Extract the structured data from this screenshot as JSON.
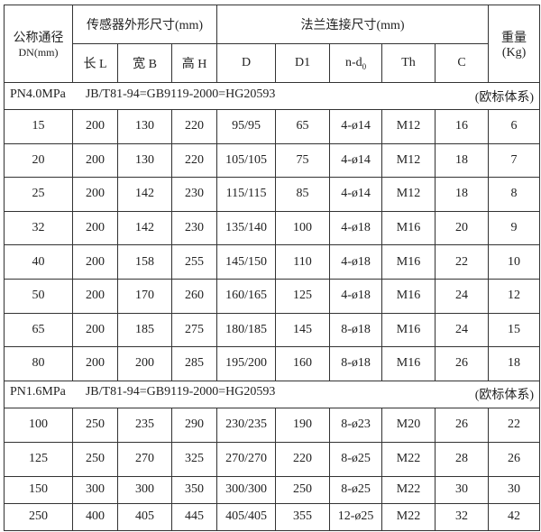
{
  "header": {
    "dn": "公称通径",
    "dn_unit": "DN(mm)",
    "sensor": "传感器外形尺寸(mm)",
    "flange": "法兰连接尺寸(mm)",
    "weight": "重量",
    "weight_unit": "(Kg)",
    "cols": [
      "长 L",
      "宽 B",
      "高 H",
      "D",
      "D1",
      "n-d",
      "Th",
      "C"
    ],
    "nd_sub": "0"
  },
  "sections": [
    {
      "pressure": "PN4.0MPa",
      "standard": "JB/T81-94=GB9119-2000=HG20593",
      "system": "(欧标体系)",
      "rows": [
        [
          "15",
          "200",
          "130",
          "220",
          "95/95",
          "65",
          "4-ø14",
          "M12",
          "16",
          "6"
        ],
        [
          "20",
          "200",
          "130",
          "220",
          "105/105",
          "75",
          "4-ø14",
          "M12",
          "18",
          "7"
        ],
        [
          "25",
          "200",
          "142",
          "230",
          "115/115",
          "85",
          "4-ø14",
          "M12",
          "18",
          "8"
        ],
        [
          "32",
          "200",
          "142",
          "230",
          "135/140",
          "100",
          "4-ø18",
          "M16",
          "20",
          "9"
        ],
        [
          "40",
          "200",
          "158",
          "255",
          "145/150",
          "110",
          "4-ø18",
          "M16",
          "22",
          "10"
        ],
        [
          "50",
          "200",
          "170",
          "260",
          "160/165",
          "125",
          "4-ø18",
          "M16",
          "24",
          "12"
        ],
        [
          "65",
          "200",
          "185",
          "275",
          "180/185",
          "145",
          "8-ø18",
          "M16",
          "24",
          "15"
        ],
        [
          "80",
          "200",
          "200",
          "285",
          "195/200",
          "160",
          "8-ø18",
          "M16",
          "26",
          "18"
        ]
      ]
    },
    {
      "pressure": "PN1.6MPa",
      "standard": "JB/T81-94=GB9119-2000=HG20593",
      "system": "(欧标体系)",
      "rows": [
        [
          "100",
          "250",
          "235",
          "290",
          "230/235",
          "190",
          "8-ø23",
          "M20",
          "26",
          "22"
        ],
        [
          "125",
          "250",
          "270",
          "325",
          "270/270",
          "220",
          "8-ø25",
          "M22",
          "28",
          "26"
        ],
        [
          "150",
          "300",
          "300",
          "350",
          "300/300",
          "250",
          "8-ø25",
          "M22",
          "30",
          "30"
        ],
        [
          "250",
          "400",
          "405",
          "445",
          "405/405",
          "355",
          "12-ø25",
          "M22",
          "32",
          "42"
        ]
      ]
    }
  ]
}
